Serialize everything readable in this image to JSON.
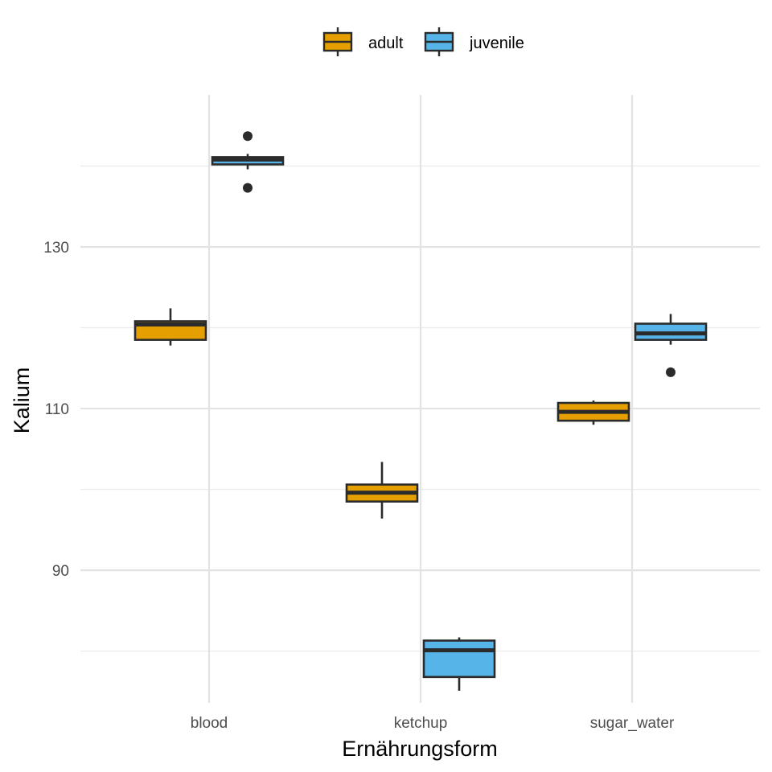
{
  "chart_data": {
    "type": "boxplot",
    "xlabel": "Ernährungsform",
    "ylabel": "Kalium",
    "categories": [
      "blood",
      "ketchup",
      "sugar_water"
    ],
    "ylim": [
      73.6,
      148.8
    ],
    "y_ticks": [
      90,
      110,
      130
    ],
    "y_minor_ticks": [
      80,
      100,
      120,
      140
    ],
    "grid": true,
    "legend_position": "top",
    "series": [
      {
        "name": "adult",
        "color": "#E69F00",
        "boxes": [
          {
            "category": "blood",
            "whisker_low": 117.8,
            "q1": 118.5,
            "median": 120.4,
            "q3": 120.8,
            "whisker_high": 122.4,
            "outliers": []
          },
          {
            "category": "ketchup",
            "whisker_low": 96.4,
            "q1": 98.5,
            "median": 99.6,
            "q3": 100.6,
            "whisker_high": 103.4,
            "outliers": []
          },
          {
            "category": "sugar_water",
            "whisker_low": 108.0,
            "q1": 108.5,
            "median": 109.6,
            "q3": 110.7,
            "whisker_high": 111.0,
            "outliers": []
          }
        ]
      },
      {
        "name": "juvenile",
        "color": "#56B4E9",
        "boxes": [
          {
            "category": "blood",
            "whisker_low": 139.6,
            "q1": 140.2,
            "median": 140.8,
            "q3": 141.1,
            "whisker_high": 141.5,
            "outliers": [
              143.7,
              137.3
            ]
          },
          {
            "category": "ketchup",
            "whisker_low": 75.1,
            "q1": 76.8,
            "median": 80.1,
            "q3": 81.3,
            "whisker_high": 81.7,
            "outliers": []
          },
          {
            "category": "sugar_water",
            "whisker_low": 117.9,
            "q1": 118.5,
            "median": 119.3,
            "q3": 120.5,
            "whisker_high": 121.7,
            "outliers": [
              114.5
            ]
          }
        ]
      }
    ]
  }
}
